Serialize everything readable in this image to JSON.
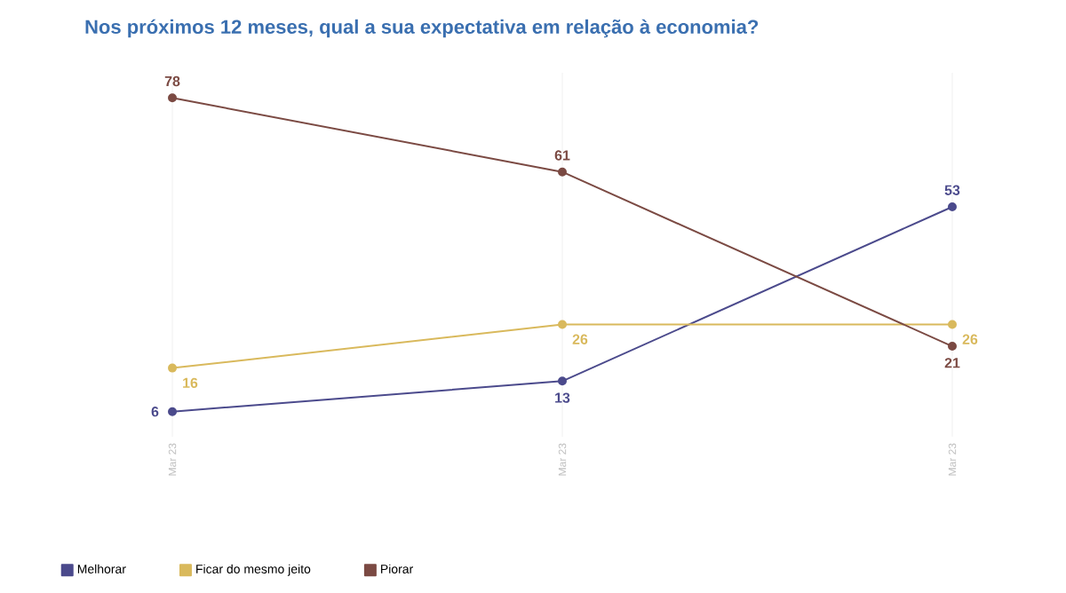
{
  "chart_data": {
    "type": "line",
    "title": "Nos próximos 12 meses, qual a sua expectativa em relação à economia?",
    "categories": [
      "Mar 23",
      "Mar 23",
      "Mar 23"
    ],
    "series": [
      {
        "name": "Melhorar",
        "color": "#4b4a8c",
        "values": [
          6,
          13,
          53
        ]
      },
      {
        "name": "Ficar do mesmo jeito",
        "color": "#d9b95c",
        "values": [
          16,
          26,
          26
        ]
      },
      {
        "name": "Piorar",
        "color": "#7b4a43",
        "values": [
          78,
          61,
          21
        ]
      }
    ],
    "data_labels": true,
    "grid": "x",
    "legend": "bottom left",
    "marker": "circle",
    "line_style": "solid"
  }
}
